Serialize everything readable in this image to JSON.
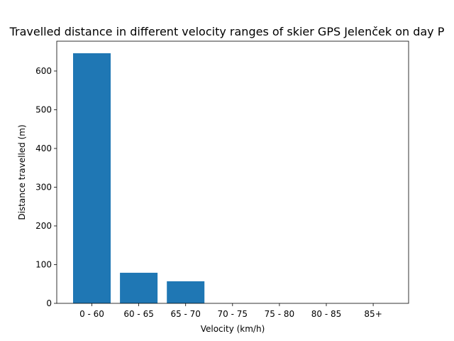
{
  "chart_data": {
    "type": "bar",
    "title": "Travelled distance in different velocity ranges of skier GPS Jelenček on day P",
    "xlabel": "Velocity (km/h)",
    "ylabel": "Distance travelled (m)",
    "categories": [
      "0 - 60",
      "60 - 65",
      "65 - 70",
      "70 - 75",
      "75 - 80",
      "80 - 85",
      "85+"
    ],
    "values": [
      646,
      79,
      57,
      0,
      0,
      0,
      0
    ],
    "ylim": [
      0,
      677
    ],
    "yticks": [
      0,
      100,
      200,
      300,
      400,
      500,
      600
    ],
    "bar_color": "#1f77b4",
    "grid": false,
    "legend": "none"
  }
}
